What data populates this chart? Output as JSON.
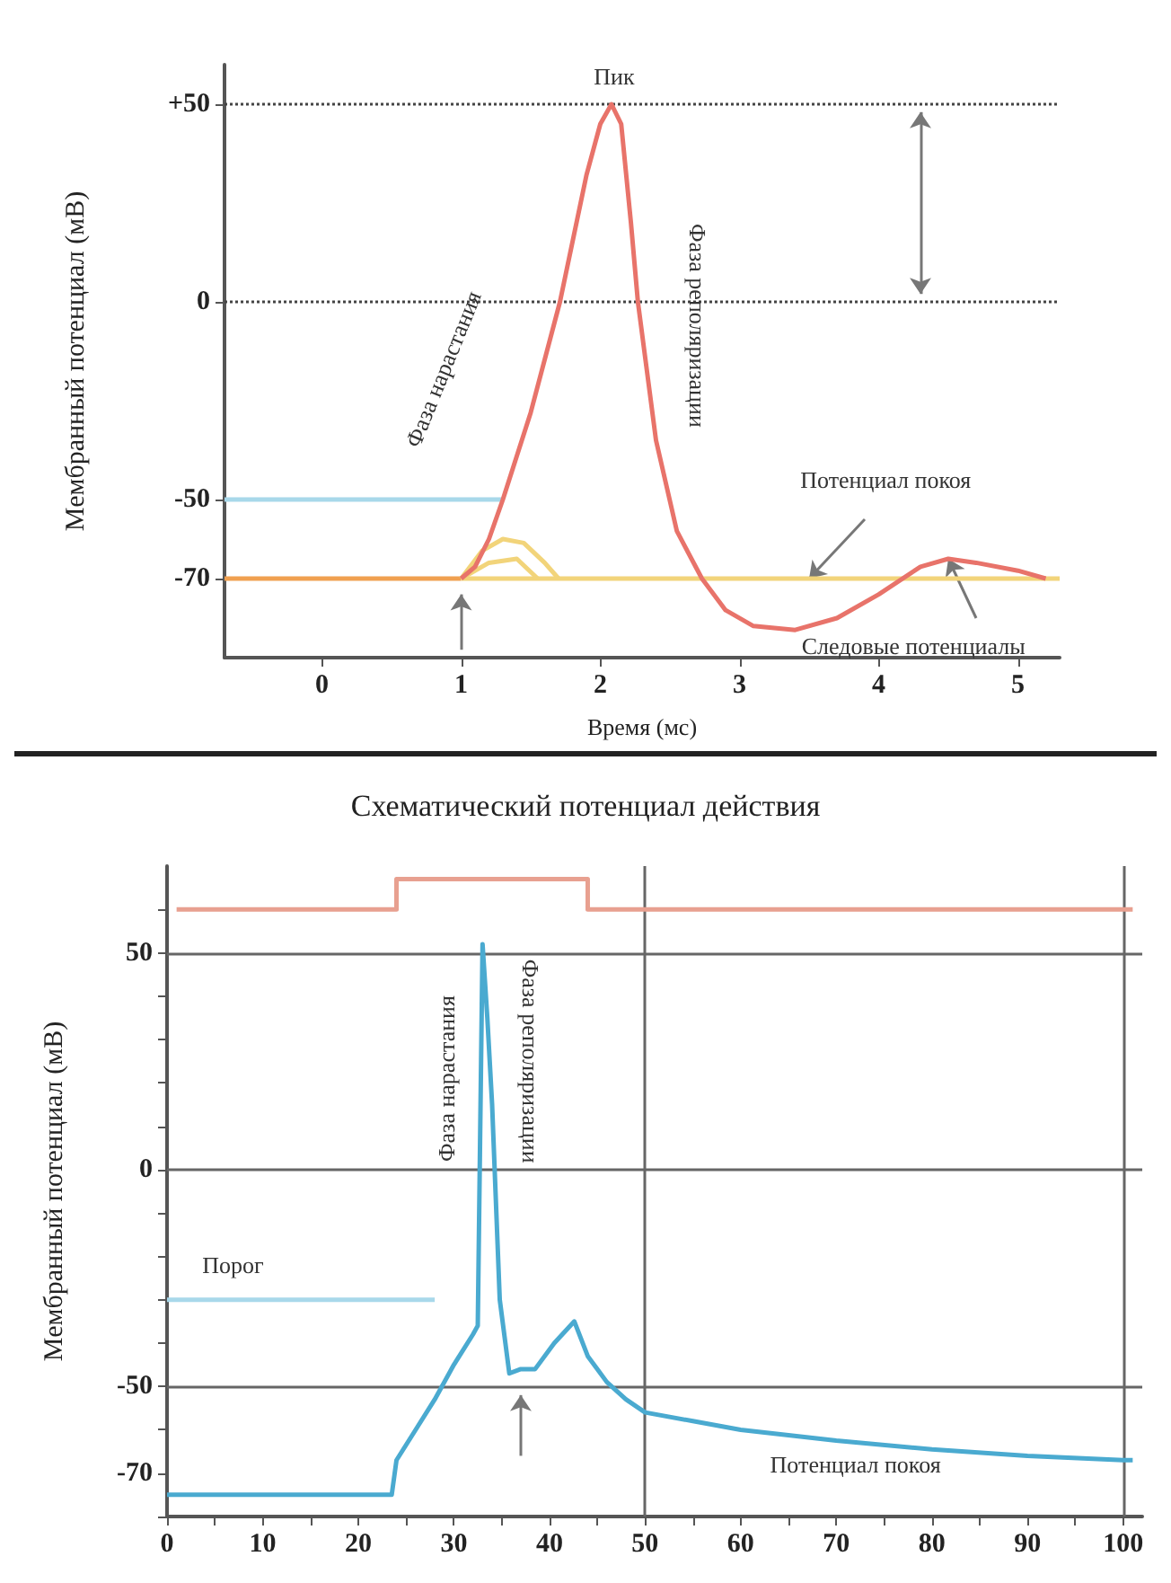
{
  "chart_data": [
    {
      "type": "line",
      "xlabel": "Время (мс)",
      "ylabel": "Мембранный потенциал (мВ)",
      "marker": "none",
      "xlim": [
        -0.7,
        5.3
      ],
      "ylim": [
        -90,
        60
      ],
      "xticks": [
        0,
        1,
        2,
        3,
        4,
        5
      ],
      "yticks": [
        {
          "value": 50,
          "label": "+50"
        },
        0,
        -50,
        -70
      ],
      "series": [
        {
          "color": "#f0a050",
          "x": [
            -0.7,
            1.0
          ],
          "values": [
            -70,
            -70
          ]
        },
        {
          "color": "#a8d8ea",
          "x": [
            -0.7,
            1.3
          ],
          "values": [
            -50,
            -50
          ]
        },
        {
          "color": "#f2d47a",
          "x": [
            1.0,
            5.3
          ],
          "values": [
            -70,
            -70
          ]
        },
        {
          "color": "#f2d47a",
          "x": [
            1.0,
            1.15,
            1.3,
            1.45,
            1.6,
            1.7
          ],
          "values": [
            -70,
            -63,
            -60,
            -61,
            -66,
            -70
          ]
        },
        {
          "color": "#f2d47a",
          "x": [
            1.0,
            1.2,
            1.4,
            1.55
          ],
          "values": [
            -70,
            -66,
            -65,
            -70
          ]
        },
        {
          "color": "#e8736a",
          "x": [
            1.0,
            1.1,
            1.2,
            1.3,
            1.5,
            1.71,
            1.9,
            2.0,
            2.08,
            2.15,
            2.22,
            2.27,
            2.4,
            2.55,
            2.73,
            2.9,
            3.1,
            3.4,
            3.7,
            4.0,
            4.3,
            4.5,
            4.7,
            5.0,
            5.2
          ],
          "values": [
            -70,
            -67,
            -60,
            -50,
            -28,
            0,
            32,
            45,
            50,
            45,
            20,
            0,
            -35,
            -58,
            -70,
            -78,
            -82,
            -83,
            -80,
            -74,
            -67,
            -65,
            -66,
            -68,
            -70
          ]
        }
      ],
      "ref_lines": [
        {
          "axis": "y",
          "value": 50,
          "line_style": "dotted",
          "color": "#444444"
        },
        {
          "axis": "y",
          "value": 0,
          "line_style": "dotted",
          "color": "#444444"
        }
      ],
      "annotations": [
        "Пик",
        "Фаза нарастания",
        "Фаза реполяризации",
        {
          "text": "Потенциал покоя",
          "x": 3.5,
          "y": -70
        },
        {
          "text": "Следовые потенциалы",
          "x": 4.5,
          "y": -65
        }
      ]
    },
    {
      "type": "line",
      "title": "Схематический потенциал действия",
      "ylabel": "Мембранный потенциал (мВ)",
      "marker": "none",
      "xlim": [
        0,
        102
      ],
      "ylim": [
        -80,
        70
      ],
      "xticks": [
        0,
        {
          "value": 5,
          "label": null
        },
        10,
        {
          "value": 15,
          "label": null
        },
        20,
        {
          "value": 25,
          "label": null
        },
        30,
        {
          "value": 35,
          "label": null
        },
        40,
        {
          "value": 45,
          "label": null
        },
        50,
        {
          "value": 55,
          "label": null
        },
        60,
        {
          "value": 65,
          "label": null
        },
        70,
        {
          "value": 75,
          "label": null
        },
        80,
        {
          "value": 85,
          "label": null
        },
        90,
        {
          "value": 95,
          "label": null
        },
        100
      ],
      "yticks": [
        {
          "value": -80,
          "label": null
        },
        -70,
        {
          "value": -60,
          "label": null
        },
        -50,
        {
          "value": -40,
          "label": null
        },
        {
          "value": -30,
          "label": null
        },
        {
          "value": -20,
          "label": null
        },
        {
          "value": -10,
          "label": null
        },
        0,
        {
          "value": 10,
          "label": null
        },
        {
          "value": 20,
          "label": null
        },
        {
          "value": 30,
          "label": null
        },
        {
          "value": 40,
          "label": null
        },
        50,
        {
          "value": 60,
          "label": null
        }
      ],
      "series": [
        {
          "color": "#e8a090",
          "x": [
            1,
            24,
            24,
            44,
            44,
            101
          ],
          "values": [
            60,
            60,
            67,
            67,
            60,
            60
          ]
        },
        {
          "color": "#a8d8ea",
          "x": [
            0,
            28
          ],
          "values": [
            -30,
            -30
          ]
        },
        {
          "color": "#4aaad0",
          "x": [
            0,
            23.5,
            24,
            26,
            28,
            30,
            32,
            32.5,
            33,
            33.5,
            34,
            34.8,
            35.8,
            37,
            38.5,
            40.5,
            42.6,
            44,
            46,
            48,
            50,
            55,
            60,
            70,
            80,
            90,
            100,
            101
          ],
          "values": [
            -75,
            -75,
            -67,
            -60,
            -53,
            -45,
            -38,
            -36,
            52,
            35,
            15,
            -30,
            -47,
            -46,
            -46,
            -40,
            -35,
            -43,
            -49,
            -53,
            -56,
            -58,
            -60,
            -62.5,
            -64.5,
            -66,
            -67,
            -67
          ]
        }
      ],
      "ref_lines": [
        {
          "axis": "y",
          "value": 50,
          "color": "#666666"
        },
        {
          "axis": "y",
          "value": 0,
          "color": "#666666"
        },
        {
          "axis": "y",
          "value": -50,
          "color": "#666666"
        },
        {
          "axis": "x",
          "value": 50,
          "color": "#666666"
        },
        {
          "axis": "x",
          "value": 100,
          "color": "#666666"
        }
      ],
      "annotations": [
        "Порог",
        "Фаза нарастания",
        "Фаза реполяризации",
        "Потенциал покоя"
      ]
    }
  ]
}
